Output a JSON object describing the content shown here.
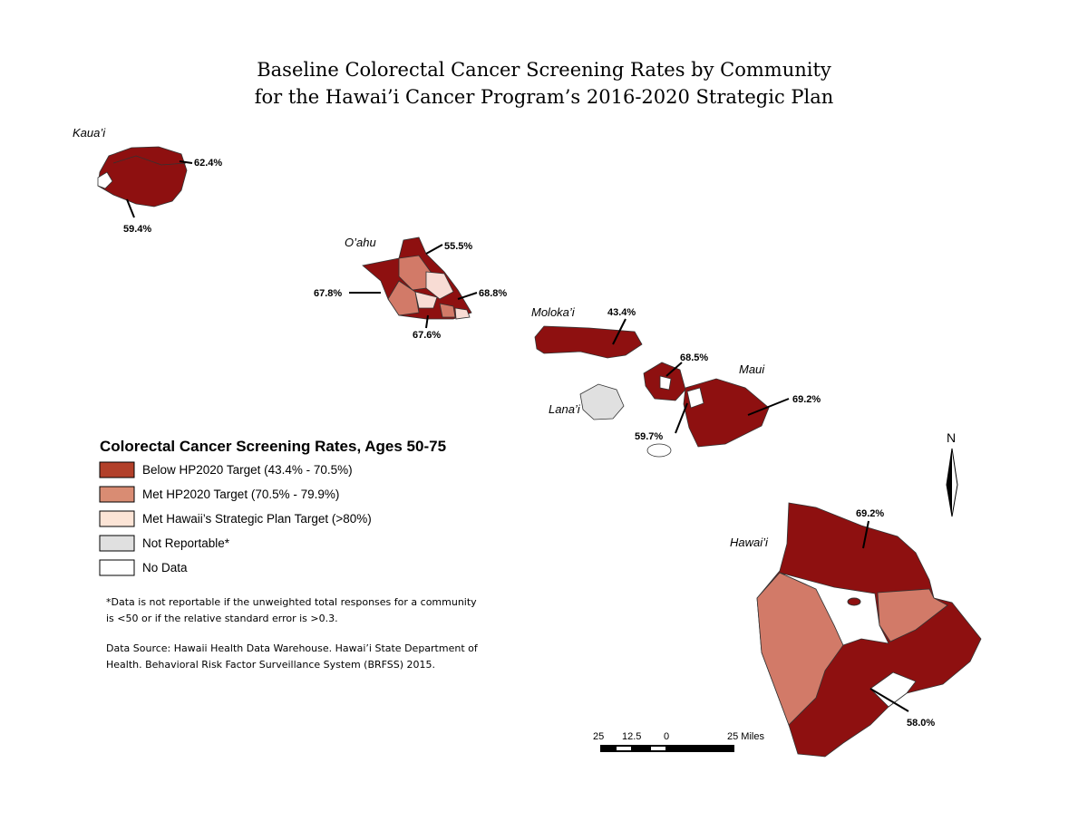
{
  "title": [
    "Baseline Colorectal Cancer Screening Rates by Community",
    "for the Hawai’i Cancer Program’s 2016-2020 Strategic Plan"
  ],
  "islands": [
    {
      "name": "Kaua’i",
      "labels": [
        "62.4%",
        "59.4%"
      ]
    },
    {
      "name": "O’ahu",
      "labels": [
        "55.5%",
        "67.8%",
        "68.8%",
        "67.6%"
      ]
    },
    {
      "name": "Moloka’i",
      "labels": [
        "43.4%"
      ]
    },
    {
      "name": "Maui",
      "labels": [
        "68.5%",
        "69.2%",
        "59.7%"
      ]
    },
    {
      "name": "Lana’i",
      "labels": []
    },
    {
      "name": "Hawai’i",
      "labels": [
        "69.2%",
        "58.0%"
      ]
    }
  ],
  "legend": {
    "title": "Colorectal Cancer Screening Rates, Ages 50-75",
    "items": [
      {
        "label": "Below HP2020 Target (43.4% - 70.5%)",
        "color": "#b2402a"
      },
      {
        "label": "Met HP2020 Target (70.5% - 79.9%)",
        "color": "#d98c73"
      },
      {
        "label": "Met Hawaii’s Strategic Plan Target (>80%)",
        "color": "#fce4d6"
      },
      {
        "label": "Not Reportable*",
        "color": "#e0e0e0"
      },
      {
        "label": "No Data",
        "color": "#ffffff"
      }
    ]
  },
  "notes": [
    "*Data is not reportable if the unweighted total responses for a community",
    "is <50 or if the relative standard error is >0.3.",
    "Data Source: Hawaii Health Data Warehouse. Hawai’i State Department of",
    "Health. Behavioral Risk Factor Surveillance System (BRFSS) 2015."
  ],
  "scale_bar": [
    "25",
    "12.5",
    "0",
    "25 Miles"
  ],
  "north": "N"
}
